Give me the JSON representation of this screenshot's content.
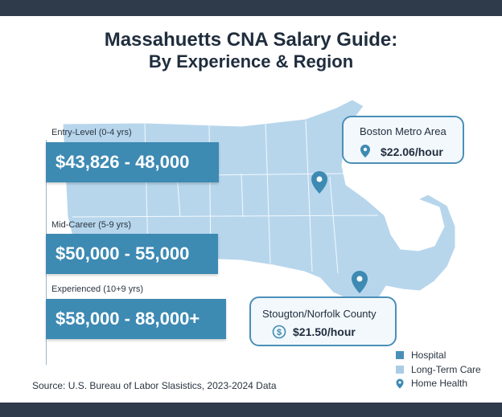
{
  "title": {
    "line1": "Massahuetts CNA Salary Guide:",
    "line2": "By Experience & Region"
  },
  "tiers": [
    {
      "label": "Entry-Level (0-4 yrs)",
      "range": "$43,826 - 48,000"
    },
    {
      "label": "Mid-Career (5-9 yrs)",
      "range": "$50,000 - 55,000"
    },
    {
      "label": "Experienced (10+9 yrs)",
      "range": "$58,000 - 88,000+"
    }
  ],
  "callouts": [
    {
      "name": "Boston Metro Area",
      "rate": "$22.06/hour",
      "icon": "map-pin-icon"
    },
    {
      "name": "Stougton/Norfolk County",
      "rate": "$21.50/hour",
      "icon": "dollar-coin-icon"
    }
  ],
  "legend": [
    {
      "label": "Hospital",
      "color": "#4a8fb8",
      "icon": "square-swatch"
    },
    {
      "label": "Long-Term Care",
      "color": "#a9cde6",
      "icon": "square-swatch"
    },
    {
      "label": "Home Health",
      "color": "#3d8ab3",
      "icon": "map-pin-icon"
    }
  ],
  "source": "Source: U.S. Bureau of Labor Slasistics, 2023-2024 Data",
  "colors": {
    "map_fill": "#b7d6ec",
    "salary_box": "#3d8ab3",
    "pin": "#3d8ab3",
    "frame": "#2f3a4a"
  }
}
